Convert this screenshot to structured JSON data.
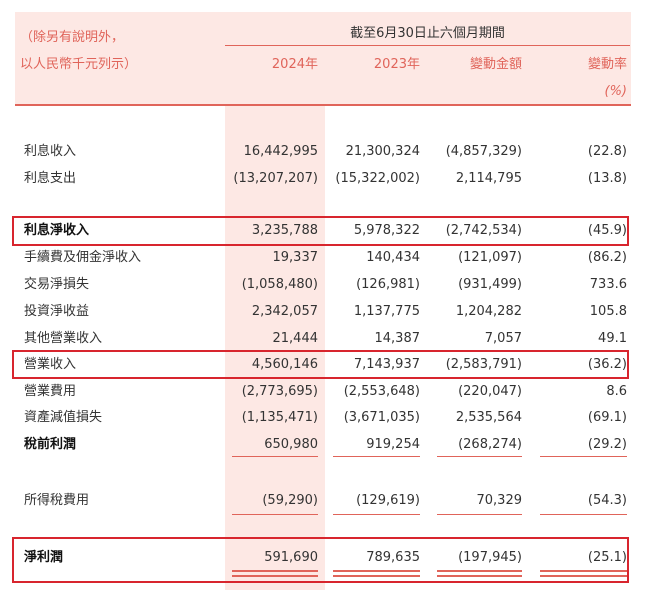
{
  "header": {
    "note": [
      "（除另有說明外，",
      "以人民幣千元列示）"
    ],
    "period": "截至6月30日止六個月期間",
    "columns": [
      "2024年",
      "2023年",
      "變動金額",
      "變動率"
    ],
    "unit": "(%)"
  },
  "table": {
    "rows": [
      [
        "利息收入",
        "16,442,995",
        "21,300,324",
        "(4,857,329)",
        "(22.8)"
      ],
      [
        "利息支出",
        "(13,207,207)",
        "(15,322,002)",
        "2,114,795",
        "(13.8)"
      ],
      [
        "利息淨收入",
        "3,235,788",
        "5,978,322",
        "(2,742,534)",
        "(45.9)"
      ],
      [
        "手續費及佣金淨收入",
        "19,337",
        "140,434",
        "(121,097)",
        "(86.2)"
      ],
      [
        "交易淨損失",
        "(1,058,480)",
        "(126,981)",
        "(931,499)",
        "733.6"
      ],
      [
        "投資淨收益",
        "2,342,057",
        "1,137,775",
        "1,204,282",
        "105.8"
      ],
      [
        "其他營業收入",
        "21,444",
        "14,387",
        "7,057",
        "49.1"
      ],
      [
        "營業收入",
        "4,560,146",
        "7,143,937",
        "(2,583,791)",
        "(36.2)"
      ],
      [
        "營業費用",
        "(2,773,695)",
        "(2,553,648)",
        "(220,047)",
        "8.6"
      ],
      [
        "資產減值損失",
        "(1,135,471)",
        "(3,671,035)",
        "2,535,564",
        "(69.1)"
      ],
      [
        "稅前利潤",
        "650,980",
        "919,254",
        "(268,274)",
        "(29.2)"
      ],
      [
        "所得稅費用",
        "(59,290)",
        "(129,619)",
        "70,329",
        "(54.3)"
      ],
      [
        "淨利潤",
        "591,690",
        "789,635",
        "(197,945)",
        "(25.1)"
      ]
    ]
  }
}
